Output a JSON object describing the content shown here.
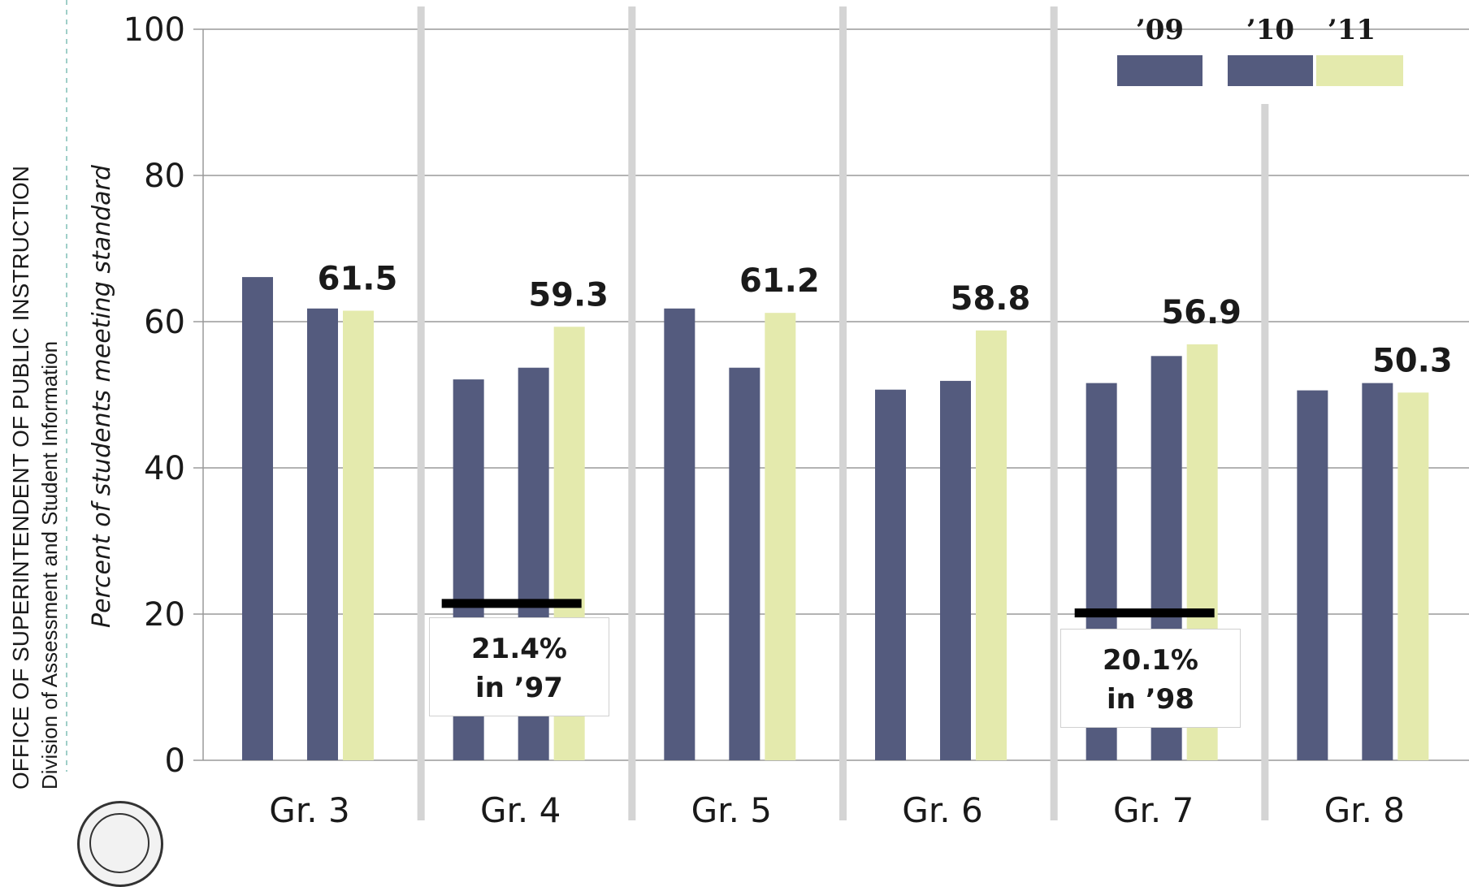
{
  "side_text": {
    "organization": "OFFICE OF SUPERINTENDENT OF PUBLIC INSTRUCTION",
    "division": "Division of Assessment and Student Information"
  },
  "colors": {
    "bar_dark": "#545b7e",
    "bar_light": "#e4eaad",
    "separator": "#d4d4d4",
    "gridline": "#9a9a9a",
    "benchmark": "#000000"
  },
  "chart_data": {
    "type": "bar",
    "ylabel": "Percent of students meeting standard",
    "xlabel": "",
    "ylim": [
      0,
      100
    ],
    "yticks": [
      0,
      20,
      40,
      60,
      80,
      100
    ],
    "grid": true,
    "categories": [
      "Gr. 3",
      "Gr. 4",
      "Gr. 5",
      "Gr. 6",
      "Gr. 7",
      "Gr. 8"
    ],
    "series": [
      {
        "name": "’09",
        "values": [
          66.1,
          52.1,
          61.8,
          50.7,
          51.6,
          50.6
        ]
      },
      {
        "name": "’10",
        "values": [
          61.8,
          53.7,
          53.7,
          51.9,
          55.3,
          51.6
        ]
      },
      {
        "name": "’11",
        "values": [
          61.5,
          59.3,
          61.2,
          58.8,
          56.9,
          50.3
        ]
      }
    ],
    "data_labels": [
      "61.5",
      "59.3",
      "61.2",
      "58.8",
      "56.9",
      "50.3"
    ],
    "legend_position": "top-right",
    "benchmarks": [
      {
        "category": "Gr. 4",
        "value": 21.4,
        "line1": "21.4%",
        "line2": "in ’97"
      },
      {
        "category": "Gr. 7",
        "value": 20.1,
        "line1": "20.1%",
        "line2": "in ’98"
      }
    ]
  }
}
